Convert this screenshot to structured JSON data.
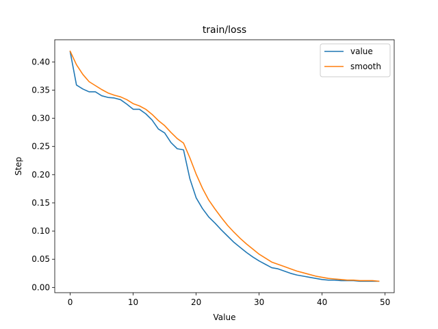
{
  "chart_data": {
    "type": "line",
    "title": "train/loss",
    "xlabel": "Value",
    "ylabel": "Step",
    "xlim": [
      -2.45,
      51.45
    ],
    "ylim": [
      -0.0093,
      0.4393
    ],
    "x_ticks": [
      0,
      10,
      20,
      30,
      40,
      50
    ],
    "y_ticks": [
      0.0,
      0.05,
      0.1,
      0.15,
      0.2,
      0.25,
      0.3,
      0.35,
      0.4
    ],
    "x_tick_labels": [
      "0",
      "10",
      "20",
      "30",
      "40",
      "50"
    ],
    "y_tick_labels": [
      "0.00",
      "0.05",
      "0.10",
      "0.15",
      "0.20",
      "0.25",
      "0.30",
      "0.35",
      "0.40"
    ],
    "grid": false,
    "legend_position": "top-right",
    "x": [
      0,
      1,
      2,
      3,
      4,
      5,
      6,
      7,
      8,
      9,
      10,
      11,
      12,
      13,
      14,
      15,
      16,
      17,
      18,
      19,
      20,
      21,
      22,
      23,
      24,
      25,
      26,
      27,
      28,
      29,
      30,
      31,
      32,
      33,
      34,
      35,
      36,
      37,
      38,
      39,
      40,
      41,
      42,
      43,
      44,
      45,
      46,
      47,
      48,
      49
    ],
    "series": [
      {
        "name": "value",
        "color": "#1f77b4",
        "values": [
          0.418,
          0.359,
          0.352,
          0.347,
          0.347,
          0.34,
          0.337,
          0.336,
          0.333,
          0.325,
          0.316,
          0.316,
          0.308,
          0.297,
          0.281,
          0.274,
          0.257,
          0.246,
          0.244,
          0.193,
          0.159,
          0.14,
          0.125,
          0.114,
          0.102,
          0.091,
          0.08,
          0.071,
          0.062,
          0.054,
          0.047,
          0.041,
          0.035,
          0.033,
          0.029,
          0.025,
          0.022,
          0.02,
          0.018,
          0.016,
          0.014,
          0.013,
          0.013,
          0.012,
          0.012,
          0.012,
          0.011,
          0.011,
          0.011,
          0.011
        ]
      },
      {
        "name": "smooth",
        "color": "#ff7f0e",
        "values": [
          0.419,
          0.395,
          0.378,
          0.365,
          0.358,
          0.351,
          0.345,
          0.341,
          0.338,
          0.333,
          0.326,
          0.322,
          0.316,
          0.307,
          0.296,
          0.287,
          0.275,
          0.264,
          0.256,
          0.23,
          0.201,
          0.176,
          0.155,
          0.139,
          0.124,
          0.11,
          0.098,
          0.087,
          0.077,
          0.068,
          0.059,
          0.052,
          0.045,
          0.041,
          0.037,
          0.033,
          0.029,
          0.026,
          0.023,
          0.02,
          0.018,
          0.016,
          0.015,
          0.014,
          0.013,
          0.013,
          0.012,
          0.012,
          0.012,
          0.011
        ]
      }
    ]
  }
}
